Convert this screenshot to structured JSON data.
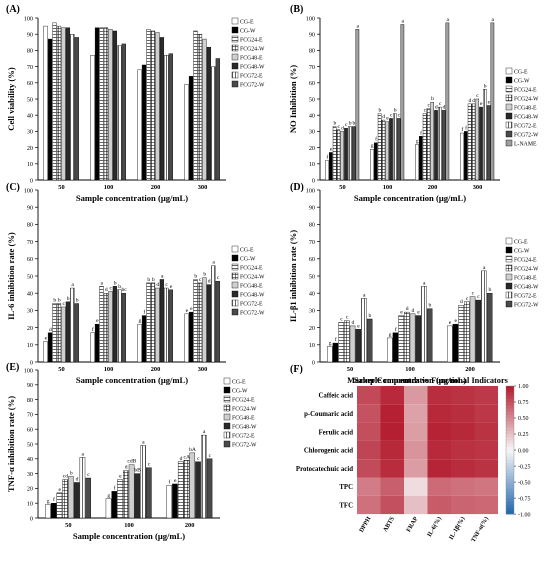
{
  "palette": {
    "fills": [
      "#ffffff",
      "#000000",
      "#ffffff",
      "#ffffff",
      "#cfcfcf",
      "#2a2a2a",
      "#ffffff",
      "#4a4a4a",
      "#9e9e9e"
    ],
    "hatches": [
      "none",
      "none",
      "hlines",
      "grid",
      "none",
      "none",
      "vlines",
      "none",
      "none"
    ],
    "heat_low": "#2166ac",
    "heat_mid": "#f7f7f7",
    "heat_high": "#b2182b"
  },
  "chart_data": [
    {
      "panel": "(A)",
      "type": "bar",
      "ylabel": "Cell viability (%)",
      "xlabel": "Sample concentration (μg/mL)",
      "ylim": [
        0,
        100
      ],
      "yticks": [
        0,
        10,
        20,
        30,
        40,
        50,
        60,
        70,
        80,
        90,
        100
      ],
      "categories": [
        "50",
        "100",
        "200",
        "300"
      ],
      "series": [
        {
          "name": "CG-E",
          "values": [
            95,
            77,
            68,
            59
          ]
        },
        {
          "name": "CG-W",
          "values": [
            87,
            94,
            71,
            64
          ]
        },
        {
          "name": "FCG24-E",
          "values": [
            97,
            94,
            93,
            92
          ]
        },
        {
          "name": "FCG24-W",
          "values": [
            95,
            94,
            92,
            90
          ]
        },
        {
          "name": "FCG48-E",
          "values": [
            94,
            93,
            91,
            87
          ]
        },
        {
          "name": "FCG48-W",
          "values": [
            94,
            92,
            88,
            82
          ]
        },
        {
          "name": "FCG72-E",
          "values": [
            90,
            83,
            77,
            70
          ]
        },
        {
          "name": "FCG72-W",
          "values": [
            88,
            84,
            78,
            75
          ]
        }
      ],
      "legend": [
        "CG-E",
        "CG-W",
        "FCG24-E",
        "FCG24-W",
        "FCG48-E",
        "FCG48-W",
        "FCG72-E",
        "FCG72-W"
      ],
      "legend_position": "right"
    },
    {
      "panel": "(B)",
      "type": "bar",
      "ylabel": "NO Inhibition (%)",
      "xlabel": "Sample concentration (μg/mL)",
      "ylim": [
        0,
        100
      ],
      "yticks": [
        0,
        10,
        20,
        30,
        40,
        50,
        60,
        70,
        80,
        90,
        100
      ],
      "categories": [
        "50",
        "100",
        "200",
        "300"
      ],
      "series": [
        {
          "name": "CG-E",
          "values": [
            12,
            19,
            22,
            29
          ],
          "letters": [
            "f",
            "g",
            "g",
            "f"
          ]
        },
        {
          "name": "CG-W",
          "values": [
            17,
            23,
            27,
            30
          ],
          "letters": [
            "e",
            "f",
            "f",
            "f"
          ]
        },
        {
          "name": "FCG24-E",
          "values": [
            33,
            41,
            41,
            47
          ],
          "letters": [
            "b",
            "b",
            "c",
            "d"
          ]
        },
        {
          "name": "FCG24-W",
          "values": [
            31,
            37,
            44,
            47
          ],
          "letters": [
            "c",
            "d",
            "c",
            "d"
          ]
        },
        {
          "name": "FCG48-E",
          "values": [
            30,
            36,
            48,
            50
          ],
          "letters": [
            "d",
            "e",
            "b",
            "c"
          ]
        },
        {
          "name": "FCG48-W",
          "values": [
            32,
            38,
            43,
            45
          ],
          "letters": [
            "c",
            "c",
            "d",
            "e"
          ]
        },
        {
          "name": "FCG72-E",
          "values": [
            33,
            41,
            45,
            56
          ],
          "letters": [
            "b",
            "b",
            "c",
            "b"
          ]
        },
        {
          "name": "FCG72-W",
          "values": [
            33,
            38,
            43,
            46
          ],
          "letters": [
            "b",
            "c",
            "d",
            "e"
          ]
        },
        {
          "name": "L-NAME",
          "values": [
            93,
            96,
            97,
            97
          ],
          "letters": [
            "a",
            "a",
            "a",
            "a"
          ]
        }
      ],
      "legend": [
        "CG-E",
        "CG-W",
        "FCG24-E",
        "FCG24-W",
        "FCG48-E",
        "FCG48-W",
        "FCG72-E",
        "FCG72-W",
        "L-NAME"
      ],
      "legend_position": "right"
    },
    {
      "panel": "(C)",
      "type": "bar",
      "ylabel": "IL-6 inhibition rate (%)",
      "xlabel": "Sample concentration (μg/mL)",
      "ylim": [
        0,
        100
      ],
      "yticks": [
        0,
        10,
        20,
        30,
        40,
        50,
        60,
        70,
        80,
        90,
        100
      ],
      "categories": [
        "50",
        "100",
        "200",
        "300"
      ],
      "series": [
        {
          "name": "CG-E",
          "values": [
            12,
            17,
            22,
            28
          ],
          "letters": [
            "e",
            "f",
            "g",
            "e"
          ]
        },
        {
          "name": "CG-W",
          "values": [
            17,
            22,
            27,
            29
          ],
          "letters": [
            "d",
            "e",
            "f",
            "e"
          ]
        },
        {
          "name": "FCG24-E",
          "values": [
            34,
            44,
            46,
            48
          ],
          "letters": [
            "b",
            "a",
            "b",
            "b"
          ]
        },
        {
          "name": "FCG24-W",
          "values": [
            34,
            40,
            46,
            46
          ],
          "letters": [
            "b",
            "d",
            "b",
            "c"
          ]
        },
        {
          "name": "FCG48-E",
          "values": [
            32,
            41,
            43,
            49
          ],
          "letters": [
            "c",
            "c",
            "d",
            "b"
          ]
        },
        {
          "name": "FCG48-W",
          "values": [
            35,
            44,
            48,
            45
          ],
          "letters": [
            "b",
            "b",
            "a",
            "d"
          ]
        },
        {
          "name": "FCG72-E",
          "values": [
            43,
            42,
            43,
            56
          ],
          "letters": [
            "a",
            "b",
            "c",
            "a"
          ]
        },
        {
          "name": "FCG72-W",
          "values": [
            34,
            40,
            42,
            47
          ],
          "letters": [
            "b",
            "bc",
            "e",
            "c"
          ]
        }
      ],
      "legend": [
        "CG-E",
        "CG-W",
        "FCG24-E",
        "FCG24-W",
        "FCG48-E",
        "FCG48-W",
        "FCG72-E",
        "FCG72-W"
      ],
      "legend_position": "right"
    },
    {
      "panel": "(D)",
      "type": "bar",
      "ylabel": "IL-β1 inhibition rate (%)",
      "xlabel": "Sample concentration (μg/mL)",
      "ylim": [
        0,
        100
      ],
      "yticks": [
        0,
        10,
        20,
        30,
        40,
        50,
        60,
        70,
        80,
        90,
        100
      ],
      "categories": [
        "50",
        "100",
        "200"
      ],
      "series": [
        {
          "name": "CG-E",
          "values": [
            9,
            14,
            21
          ],
          "letters": [
            "g",
            "g",
            "e"
          ]
        },
        {
          "name": "CG-W",
          "values": [
            11,
            17,
            22
          ],
          "letters": [
            "f",
            "f",
            "e"
          ]
        },
        {
          "name": "FCG24-E",
          "values": [
            23,
            27,
            33
          ],
          "letters": [
            "c",
            "e",
            "d"
          ]
        },
        {
          "name": "FCG24-W",
          "values": [
            24,
            29,
            35
          ],
          "letters": [
            "c",
            "d",
            "c"
          ]
        },
        {
          "name": "FCG48-E",
          "values": [
            21,
            28,
            38
          ],
          "letters": [
            "d",
            "d",
            "c"
          ]
        },
        {
          "name": "FCG48-W",
          "values": [
            19,
            27,
            36
          ],
          "letters": [
            "e",
            "e",
            "c"
          ]
        },
        {
          "name": "FCG72-E",
          "values": [
            37,
            44,
            53
          ],
          "letters": [
            "a",
            "a",
            "a"
          ]
        },
        {
          "name": "FCG72-W",
          "values": [
            25,
            31,
            40
          ],
          "letters": [
            "b",
            "b",
            "b"
          ]
        }
      ],
      "legend": [
        "CG-E",
        "CG-W",
        "FCG24-E",
        "FCG24-W",
        "FCG48-E",
        "FCG48-W",
        "FCG72-E",
        "FCG72-W"
      ],
      "legend_position": "top-right"
    },
    {
      "panel": "(E)",
      "type": "bar",
      "ylabel": "TNF-α inhibition rate (%)",
      "xlabel": "Sample concentration (μg/mL)",
      "ylim": [
        0,
        100
      ],
      "yticks": [
        0,
        10,
        20,
        30,
        40,
        50,
        60,
        70,
        80,
        90,
        100
      ],
      "categories": [
        "50",
        "100",
        "200"
      ],
      "series": [
        {
          "name": "CG-E",
          "values": [
            9,
            13,
            22
          ],
          "letters": [
            "g",
            "g",
            "f"
          ]
        },
        {
          "name": "CG-W",
          "values": [
            10,
            18,
            23
          ],
          "letters": [
            "f",
            "f",
            "e"
          ]
        },
        {
          "name": "FCG24-E",
          "values": [
            17,
            26,
            38
          ],
          "letters": [
            "e",
            "e",
            "d"
          ]
        },
        {
          "name": "FCG24-W",
          "values": [
            26,
            32,
            39
          ],
          "letters": [
            "cd",
            "d",
            "cA"
          ]
        },
        {
          "name": "FCG48-E",
          "values": [
            28,
            36,
            44
          ],
          "letters": [
            "b",
            "cdB",
            "bA"
          ]
        },
        {
          "name": "FCG48-W",
          "values": [
            24,
            30,
            38
          ],
          "letters": [
            "d",
            "bB",
            "c"
          ]
        },
        {
          "name": "FCG72-E",
          "values": [
            41,
            49,
            56
          ],
          "letters": [
            "a",
            "a",
            "a"
          ]
        },
        {
          "name": "FCG72-W",
          "values": [
            27,
            34,
            40
          ],
          "letters": [
            "c",
            "c",
            "c"
          ]
        }
      ],
      "legend": [
        "CG-E",
        "CG-W",
        "FCG24-E",
        "FCG24-W",
        "FCG48-E",
        "FCG48-W",
        "FCG72-E",
        "FCG72-W"
      ],
      "legend_position": "top-right"
    },
    {
      "panel": "(F)",
      "type": "heatmap",
      "title": "Marker Compounds vs Functional Indicators",
      "rows": [
        "Caffeic acid",
        "p-Coumaric acid",
        "Ferulic acid",
        "Chlorogenic acid",
        "Protocatechuic acid",
        "TPC",
        "TFC"
      ],
      "columns": [
        "DPPH",
        "ABTS",
        "FRAP",
        "IL-6(%)",
        "IL-1β(%)",
        "TNF-α(%)"
      ],
      "values": [
        [
          0.78,
          0.92,
          0.42,
          0.9,
          0.88,
          0.85
        ],
        [
          0.74,
          0.96,
          0.38,
          0.93,
          0.9,
          0.86
        ],
        [
          0.76,
          0.97,
          0.4,
          0.95,
          0.93,
          0.88
        ],
        [
          0.8,
          0.93,
          0.45,
          0.92,
          0.89,
          0.87
        ],
        [
          0.77,
          0.91,
          0.41,
          0.94,
          0.91,
          0.88
        ],
        [
          0.55,
          0.68,
          0.12,
          0.63,
          0.6,
          0.58
        ],
        [
          0.6,
          0.75,
          0.25,
          0.7,
          0.66,
          0.64
        ]
      ],
      "colorbar_ticks": [
        "1.00",
        "0.75",
        "0.50",
        "0.25",
        "0.00",
        "-0.25",
        "-0.50",
        "-0.75",
        "-1.00"
      ],
      "vmin": -1,
      "vmax": 1
    }
  ]
}
